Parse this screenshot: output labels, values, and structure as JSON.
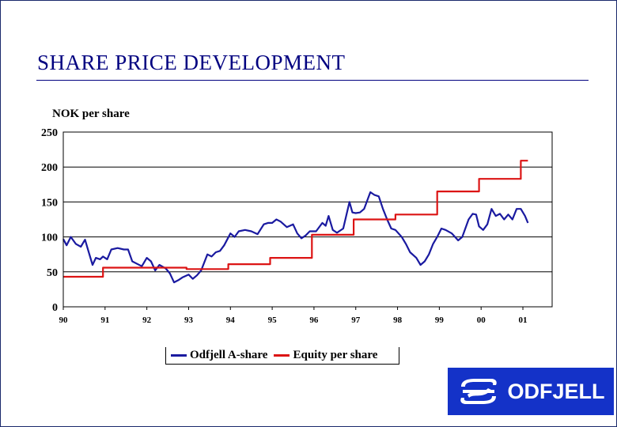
{
  "slide": {
    "title": "SHARE PRICE DEVELOPMENT"
  },
  "brand": {
    "name": "ODFJELL",
    "color": "#1432c8"
  },
  "chart_data": {
    "type": "line",
    "ylabel": "NOK per share",
    "ylim": [
      0,
      250
    ],
    "yticks": [
      "250",
      "200",
      "150",
      "100",
      "50",
      "0"
    ],
    "ytick_values": [
      250,
      200,
      150,
      100,
      50,
      0
    ],
    "xlim": [
      0,
      11.7
    ],
    "xticks": [
      "90",
      "91",
      "92",
      "93",
      "94",
      "95",
      "96",
      "97",
      "98",
      "99",
      "00",
      "01"
    ],
    "grid": "horizontal",
    "legend": "bottom-center",
    "series": [
      {
        "name": "Odfjell A-share",
        "color": "#1a1aa0",
        "points": [
          [
            0,
            97
          ],
          [
            0.08,
            88
          ],
          [
            0.18,
            100
          ],
          [
            0.3,
            90
          ],
          [
            0.42,
            86
          ],
          [
            0.52,
            96
          ],
          [
            0.6,
            80
          ],
          [
            0.7,
            60
          ],
          [
            0.78,
            70
          ],
          [
            0.88,
            68
          ],
          [
            0.95,
            72
          ],
          [
            1.05,
            68
          ],
          [
            1.15,
            82
          ],
          [
            1.3,
            84
          ],
          [
            1.45,
            82
          ],
          [
            1.55,
            82
          ],
          [
            1.65,
            65
          ],
          [
            1.75,
            62
          ],
          [
            1.88,
            58
          ],
          [
            2.0,
            70
          ],
          [
            2.1,
            65
          ],
          [
            2.2,
            52
          ],
          [
            2.3,
            60
          ],
          [
            2.45,
            55
          ],
          [
            2.55,
            48
          ],
          [
            2.65,
            35
          ],
          [
            2.75,
            38
          ],
          [
            2.85,
            42
          ],
          [
            3.0,
            46
          ],
          [
            3.1,
            40
          ],
          [
            3.2,
            45
          ],
          [
            3.3,
            52
          ],
          [
            3.45,
            75
          ],
          [
            3.55,
            72
          ],
          [
            3.65,
            78
          ],
          [
            3.75,
            80
          ],
          [
            3.85,
            88
          ],
          [
            4.0,
            105
          ],
          [
            4.1,
            100
          ],
          [
            4.2,
            108
          ],
          [
            4.35,
            110
          ],
          [
            4.5,
            108
          ],
          [
            4.65,
            104
          ],
          [
            4.8,
            118
          ],
          [
            4.9,
            120
          ],
          [
            5.0,
            120
          ],
          [
            5.1,
            125
          ],
          [
            5.2,
            122
          ],
          [
            5.35,
            114
          ],
          [
            5.5,
            118
          ],
          [
            5.6,
            105
          ],
          [
            5.7,
            98
          ],
          [
            5.8,
            102
          ],
          [
            5.9,
            108
          ],
          [
            6.05,
            108
          ],
          [
            6.2,
            120
          ],
          [
            6.28,
            116
          ],
          [
            6.35,
            130
          ],
          [
            6.45,
            110
          ],
          [
            6.55,
            106
          ],
          [
            6.7,
            112
          ],
          [
            6.85,
            150
          ],
          [
            6.92,
            135
          ],
          [
            7.0,
            134
          ],
          [
            7.1,
            135
          ],
          [
            7.2,
            140
          ],
          [
            7.35,
            164
          ],
          [
            7.45,
            160
          ],
          [
            7.55,
            158
          ],
          [
            7.65,
            140
          ],
          [
            7.75,
            125
          ],
          [
            7.85,
            112
          ],
          [
            7.95,
            110
          ],
          [
            8.1,
            100
          ],
          [
            8.2,
            90
          ],
          [
            8.3,
            78
          ],
          [
            8.45,
            70
          ],
          [
            8.55,
            60
          ],
          [
            8.65,
            65
          ],
          [
            8.75,
            75
          ],
          [
            8.85,
            90
          ],
          [
            8.95,
            100
          ],
          [
            9.05,
            112
          ],
          [
            9.15,
            110
          ],
          [
            9.3,
            105
          ],
          [
            9.45,
            95
          ],
          [
            9.55,
            100
          ],
          [
            9.7,
            125
          ],
          [
            9.8,
            133
          ],
          [
            9.88,
            132
          ],
          [
            9.95,
            115
          ],
          [
            10.05,
            110
          ],
          [
            10.15,
            118
          ],
          [
            10.25,
            140
          ],
          [
            10.35,
            130
          ],
          [
            10.45,
            133
          ],
          [
            10.55,
            125
          ],
          [
            10.65,
            132
          ],
          [
            10.75,
            125
          ],
          [
            10.85,
            140
          ],
          [
            10.95,
            140
          ],
          [
            11.05,
            130
          ],
          [
            11.12,
            120
          ]
        ]
      },
      {
        "name": "Equity per share",
        "color": "#dc1414",
        "points": [
          [
            0,
            43
          ],
          [
            0.95,
            43
          ],
          [
            0.95,
            56
          ],
          [
            2.95,
            56
          ],
          [
            2.95,
            54
          ],
          [
            3.95,
            54
          ],
          [
            3.95,
            61
          ],
          [
            4.95,
            61
          ],
          [
            4.95,
            70
          ],
          [
            5.95,
            70
          ],
          [
            5.95,
            103
          ],
          [
            6.95,
            103
          ],
          [
            6.95,
            125
          ],
          [
            7.95,
            125
          ],
          [
            7.95,
            132
          ],
          [
            8.95,
            132
          ],
          [
            8.95,
            165
          ],
          [
            9.95,
            165
          ],
          [
            9.95,
            183
          ],
          [
            10.95,
            183
          ],
          [
            10.95,
            209
          ],
          [
            11.12,
            209
          ]
        ]
      }
    ]
  }
}
